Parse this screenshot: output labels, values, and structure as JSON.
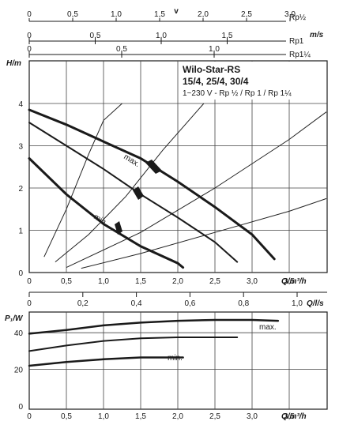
{
  "chart_data": [
    {
      "type": "line",
      "title": "Wilo-Star-RS",
      "subtitle": "15/4, 25/4, 30/4",
      "spec": "1~230 V - Rp ½ / Rp 1 / Rp 1¼",
      "ylabel": "H/m",
      "xlabel": "Q/m³/h",
      "xlim": [
        0,
        4
      ],
      "ylim": [
        0,
        4
      ],
      "xticks": [
        "0",
        "0,5",
        "1,0",
        "1,5",
        "2,0",
        "2,5",
        "3,0",
        "3,5"
      ],
      "yticks": [
        "0",
        "1",
        "2",
        "3",
        "4"
      ],
      "velocity_scales": [
        {
          "label": "Rp½",
          "ticks": [
            "0",
            "0,5",
            "1,0",
            "1,5",
            "2,0",
            "2,5",
            "3,0"
          ]
        },
        {
          "label": "Rp1",
          "ticks": [
            "0",
            "0,5",
            "1,0",
            "1,5"
          ]
        },
        {
          "label": "Rp1¼",
          "ticks": [
            "0",
            "0,5",
            "1,0"
          ]
        }
      ],
      "velocity_title": "v",
      "velocity_unit": "m/s",
      "series": [
        {
          "name": "max.",
          "x": [
            0,
            0.5,
            1.0,
            1.5,
            2.0,
            2.5,
            3.0,
            3.3
          ],
          "y": [
            3.85,
            3.5,
            3.1,
            2.7,
            2.15,
            1.55,
            0.9,
            0.32
          ]
        },
        {
          "name": "",
          "x": [
            0,
            0.5,
            1.0,
            1.5,
            2.0,
            2.5,
            2.8
          ],
          "y": [
            3.55,
            3.0,
            2.45,
            1.85,
            1.3,
            0.72,
            0.25
          ]
        },
        {
          "name": "min.",
          "x": [
            0,
            0.5,
            1.0,
            1.5,
            2.0,
            2.07
          ],
          "y": [
            2.7,
            1.85,
            1.15,
            0.62,
            0.22,
            0.12
          ]
        }
      ],
      "system_curves": [
        {
          "x": [
            0.2,
            0.5,
            0.8,
            1.0,
            1.25
          ],
          "y": [
            0.37,
            1.5,
            2.8,
            3.6,
            4.0
          ]
        },
        {
          "x": [
            0.35,
            0.8,
            1.3,
            1.8,
            2.35
          ],
          "y": [
            0.25,
            0.9,
            1.8,
            2.9,
            4.0
          ]
        },
        {
          "x": [
            0.5,
            1.5,
            2.5,
            3.5,
            4.0
          ],
          "y": [
            0.12,
            0.95,
            2.0,
            3.15,
            3.8
          ]
        },
        {
          "x": [
            0.7,
            1.5,
            2.5,
            3.5,
            4.0
          ],
          "y": [
            0.1,
            0.45,
            0.95,
            1.45,
            1.75
          ]
        }
      ],
      "series_labels": [
        "max.",
        "min."
      ],
      "grid": true
    },
    {
      "type": "line",
      "ylabel": "P₁/W",
      "xlabel": "Q/m³/h",
      "x2label": "Q/l/s",
      "xlim": [
        0,
        4
      ],
      "ylim": [
        0,
        60
      ],
      "xticks": [
        "0",
        "0,5",
        "1,0",
        "1,5",
        "2,0",
        "2,5",
        "3,0",
        "3,5"
      ],
      "x2ticks": [
        "0",
        "0,2",
        "0,4",
        "0,6",
        "0,8",
        "1,0"
      ],
      "yticks": [
        "0",
        "20",
        "40"
      ],
      "series": [
        {
          "name": "max.",
          "x": [
            0,
            0.5,
            1.0,
            1.5,
            2.0,
            2.5,
            3.0,
            3.35
          ],
          "y": [
            39.5,
            41.5,
            44,
            45.5,
            46.5,
            47,
            47,
            46.5
          ]
        },
        {
          "name": "",
          "x": [
            0,
            0.5,
            1.0,
            1.5,
            2.0,
            2.5,
            2.8
          ],
          "y": [
            30,
            33,
            35.5,
            37,
            37.5,
            37.5,
            37.5
          ]
        },
        {
          "name": "min.",
          "x": [
            0,
            0.5,
            1.0,
            1.5,
            2.0,
            2.07
          ],
          "y": [
            22,
            24,
            25.5,
            26.5,
            26.5,
            26.5
          ]
        }
      ],
      "series_labels": [
        "max.",
        "min."
      ],
      "grid": true
    }
  ]
}
